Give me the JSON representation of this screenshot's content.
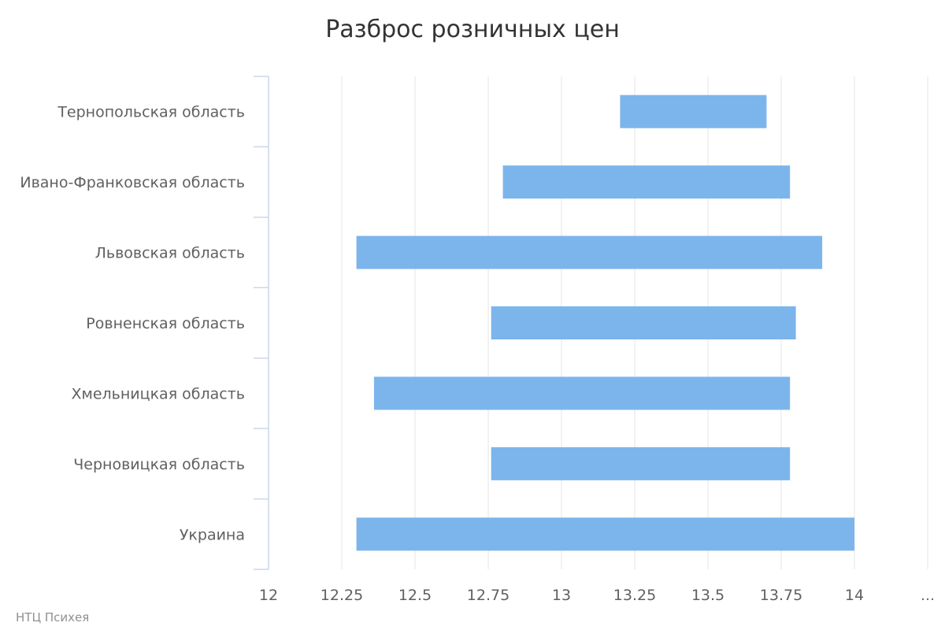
{
  "chart_data": {
    "type": "bar",
    "orientation": "horizontal",
    "subtype": "floating-range",
    "title": "Разброс розничных цен",
    "categories": [
      "Тернопольская область",
      "Ивано-Франковская область",
      "Львовская область",
      "Ровненская область",
      "Хмельницкая область",
      "Черновицкая область",
      "Украина"
    ],
    "series": [
      {
        "ranges": [
          [
            13.2,
            13.7
          ],
          [
            12.8,
            13.78
          ],
          [
            12.3,
            13.89
          ],
          [
            12.76,
            13.8
          ],
          [
            12.36,
            13.78
          ],
          [
            12.76,
            13.78
          ],
          [
            12.3,
            14.0
          ]
        ]
      }
    ],
    "xlim": [
      12,
      14.25
    ],
    "x_ticks": [
      "12",
      "12.25",
      "12.5",
      "12.75",
      "13",
      "13.25",
      "13.5",
      "13.75",
      "14",
      "…"
    ],
    "x_tick_values": [
      12,
      12.25,
      12.5,
      12.75,
      13,
      13.25,
      13.5,
      13.75,
      14,
      14.25
    ],
    "grid": true,
    "legend": "none"
  },
  "colors": {
    "bar": "#7cb5ec",
    "grid": "#e6e6e6",
    "axis": "#ccd6eb"
  },
  "credits": "НТЦ Психея"
}
